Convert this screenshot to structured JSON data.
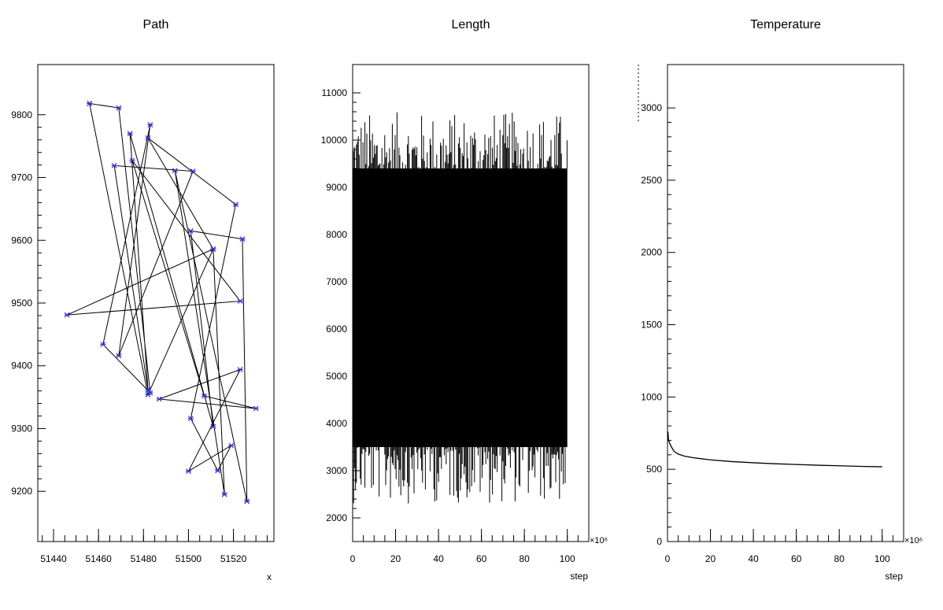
{
  "chart_data": [
    {
      "type": "scatter",
      "title": "Path",
      "xlabel": "x",
      "ylabel": "",
      "xlim": [
        51433,
        51538
      ],
      "ylim": [
        9120,
        9880
      ],
      "xticks": [
        51440,
        51460,
        51480,
        51500,
        51520
      ],
      "yticks": [
        9200,
        9300,
        9400,
        9500,
        9600,
        9700,
        9800
      ],
      "xtick_labels": [
        "51440",
        "51460",
        "51480",
        "51500",
        "51520"
      ],
      "ytick_labels": [
        "9200",
        "9300",
        "9400",
        "9500",
        "9600",
        "9700",
        "9800"
      ],
      "marker_color": "#3333cc",
      "line_color": "#000000",
      "points": [
        [
          51456,
          9818
        ],
        [
          51469,
          9811
        ],
        [
          51483,
          9357
        ],
        [
          51462,
          9434
        ],
        [
          51483,
          9784
        ],
        [
          51469,
          9416
        ],
        [
          51502,
          9710
        ],
        [
          51467,
          9719
        ],
        [
          51482,
          9362
        ],
        [
          51474,
          9770
        ],
        [
          51511,
          9303
        ],
        [
          51501,
          9615
        ],
        [
          51524,
          9602
        ],
        [
          51526,
          9184
        ],
        [
          51494,
          9711
        ],
        [
          51516,
          9195
        ],
        [
          51511,
          9586
        ],
        [
          51482,
          9763
        ],
        [
          51521,
          9657
        ],
        [
          51501,
          9316
        ],
        [
          51513,
          9233
        ],
        [
          51519,
          9273
        ],
        [
          51500,
          9232
        ],
        [
          51523,
          9394
        ],
        [
          51487,
          9347
        ],
        [
          51530,
          9332
        ],
        [
          51507,
          9352
        ],
        [
          51475,
          9727
        ],
        [
          51523,
          9503
        ],
        [
          51446,
          9481
        ],
        [
          51511,
          9586
        ],
        [
          51482,
          9354
        ],
        [
          51456,
          9818
        ]
      ]
    },
    {
      "type": "area",
      "title": "Length",
      "xlabel": "step",
      "ylabel": "",
      "x_exponent": "×10⁶",
      "xlim": [
        0,
        110
      ],
      "ylim": [
        1500,
        11600
      ],
      "xticks": [
        0,
        20,
        40,
        60,
        80,
        100
      ],
      "yticks": [
        2000,
        3000,
        4000,
        5000,
        6000,
        7000,
        8000,
        9000,
        10000,
        11000
      ],
      "xtick_labels": [
        "0",
        "20",
        "40",
        "60",
        "80",
        "100"
      ],
      "ytick_labels": [
        "2000",
        "3000",
        "4000",
        "5000",
        "6000",
        "7000",
        "8000",
        "9000",
        "10000",
        "11000"
      ],
      "x_range": [
        0,
        100
      ],
      "band_low": 3500,
      "band_high": 9400,
      "upper_envelope_range": [
        9300,
        10600
      ],
      "lower_envelope_range": [
        2300,
        3600
      ],
      "fill_color": "#000000"
    },
    {
      "type": "line",
      "title": "Temperature",
      "xlabel": "step",
      "ylabel": "",
      "x_exponent": "×10⁶",
      "xlim": [
        0,
        110
      ],
      "ylim": [
        0,
        3300
      ],
      "xticks": [
        0,
        20,
        40,
        60,
        80,
        100
      ],
      "yticks": [
        0,
        500,
        1000,
        1500,
        2000,
        2500,
        3000
      ],
      "xtick_labels": [
        "0",
        "20",
        "40",
        "60",
        "80",
        "100"
      ],
      "ytick_labels": [
        "0",
        "500",
        "1000",
        "1500",
        "2000",
        "2500",
        "3000"
      ],
      "x": [
        0,
        0.2,
        0.5,
        1,
        2,
        3,
        5,
        8,
        12,
        20,
        30,
        40,
        50,
        60,
        70,
        80,
        90,
        100
      ],
      "y": [
        3300,
        760,
        700,
        680,
        650,
        625,
        605,
        590,
        580,
        565,
        553,
        545,
        538,
        533,
        528,
        524,
        520,
        517
      ],
      "line_color": "#000000"
    }
  ]
}
